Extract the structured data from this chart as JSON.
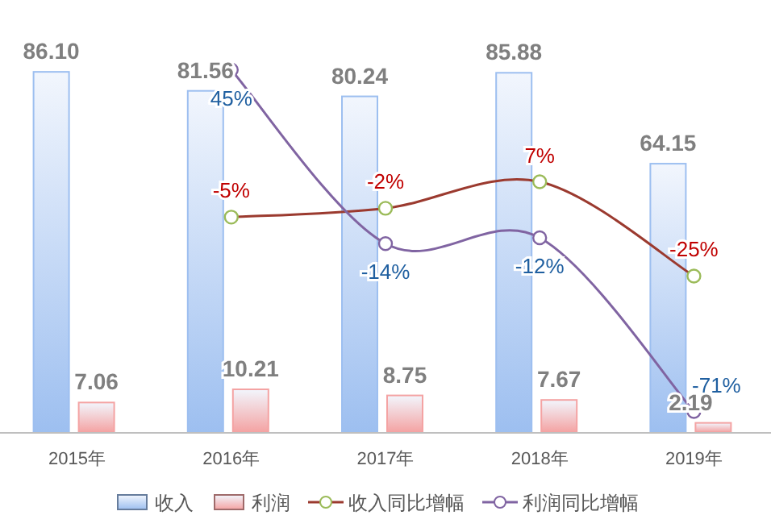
{
  "chart_data": {
    "type": "bar",
    "categories": [
      "2015年",
      "2016年",
      "2017年",
      "2018年",
      "2019年"
    ],
    "series": [
      {
        "name": "收入",
        "color": "#9dbff0",
        "values": [
          86.1,
          81.56,
          80.24,
          85.88,
          64.15
        ],
        "value_labels": [
          "86.10",
          "81.56",
          "80.24",
          "85.88",
          "64.15"
        ]
      },
      {
        "name": "利润",
        "color": "#f4a3a3",
        "values": [
          7.06,
          10.21,
          8.75,
          7.67,
          2.19
        ],
        "value_labels": [
          "7.06",
          "10.21",
          "8.75",
          "7.67",
          "2.19"
        ]
      },
      {
        "name": "收入同比增幅",
        "type": "line",
        "axis": "y2",
        "color": "#9b3a2f",
        "values": [
          null,
          -5,
          -2,
          7,
          -25
        ],
        "value_labels": [
          null,
          "-5%",
          "-2%",
          "7%",
          "-25%"
        ]
      },
      {
        "name": "利润同比增幅",
        "type": "line",
        "axis": "y2",
        "color": "#8064a2",
        "values": [
          null,
          45,
          -14,
          -12,
          -71
        ],
        "value_labels": [
          null,
          "45%",
          "-14%",
          "-12%",
          "-71%"
        ]
      }
    ],
    "legend": "bottom",
    "marker": "circle",
    "tick_labels": "x"
  }
}
